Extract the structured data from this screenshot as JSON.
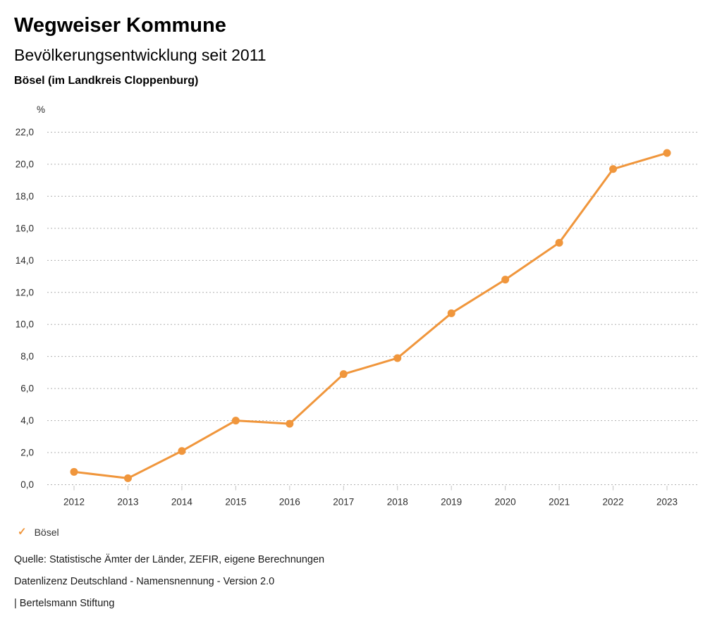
{
  "header": {
    "title": "Wegweiser Kommune",
    "subtitle": "Bevölkerungsentwicklung seit 2011",
    "region": "Bösel (im Landkreis Cloppenburg)"
  },
  "chart_data": {
    "type": "line",
    "title": "Bevölkerungsentwicklung seit 2011",
    "unit": "%",
    "categories": [
      "2012",
      "2013",
      "2014",
      "2015",
      "2016",
      "2017",
      "2018",
      "2019",
      "2020",
      "2021",
      "2022",
      "2023"
    ],
    "series": [
      {
        "name": "Bösel",
        "color": "#f0963c",
        "values": [
          0.8,
          0.4,
          2.1,
          4.0,
          3.8,
          6.9,
          7.9,
          10.7,
          12.8,
          15.1,
          19.7,
          20.7
        ]
      }
    ],
    "ylim": [
      0,
      22
    ],
    "ytick_step": 2,
    "ytick_labels": [
      "0,0",
      "2,0",
      "4,0",
      "6,0",
      "8,0",
      "10,0",
      "12,0",
      "14,0",
      "16,0",
      "18,0",
      "20,0",
      "22,0"
    ],
    "grid": "horizontal-dotted",
    "legend_position": "bottom-left",
    "colors": {
      "series": "#f0963c",
      "gridline": "#b0b0b0",
      "tick": "#c4c4c4",
      "axis_text": "#2b2b2b"
    }
  },
  "legend": {
    "items": [
      {
        "marker": "✓",
        "label": "Bösel",
        "color": "#f0963c"
      }
    ]
  },
  "footer": {
    "source": "Quelle: Statistische Ämter der Länder, ZEFIR, eigene Berechnungen",
    "license": "Datenlizenz Deutschland - Namensnennung - Version 2.0",
    "attribution": "| Bertelsmann Stiftung"
  }
}
